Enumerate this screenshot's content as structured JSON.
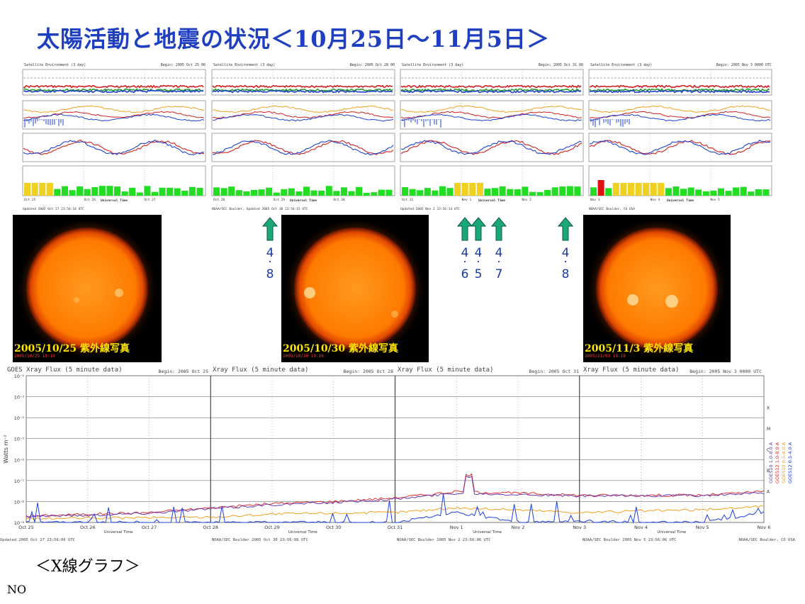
{
  "title": "太陽活動と地震の状況＜10月25日～11月5日＞",
  "satellite_panels": [
    {
      "header_left": "Satellite Environment (3 day)",
      "header_right": "Begin: 2005 Oct 25 00",
      "footer": "Updated 2005 Oct 27 23:56:14 UTC",
      "x_ticks": [
        "Oct 25",
        "Oct 26",
        "Oct 27"
      ]
    },
    {
      "header_left": "Satellite Environment (3 day)",
      "header_right": "Begin: 2005 Oct 28 00",
      "footer": "NOAA/SEC Boulder, Updated 2005 Oct 30 23:56:15 UTC",
      "x_ticks": [
        "Oct 28",
        "Oct 29",
        "Oct 30"
      ]
    },
    {
      "header_left": "Satellite Environment (3 day)",
      "header_right": "Begin: 2005 Oct 31 00",
      "footer": "Updated 2005 Nov 2 23:56:14 UTC",
      "x_ticks": [
        "Oct 31",
        "Nov 1",
        "Nov 2"
      ]
    },
    {
      "header_left": "Satellite Environment (3 day)",
      "header_right": "Begin: 2005 Nov 3 0000 UTC",
      "footer": "NOAA/SEC Boulder, CO USA",
      "x_ticks": [
        "Nov 3",
        "Nov 4",
        "Nov 5"
      ]
    }
  ],
  "satellite_axis_label": "Universal Time",
  "sun_images": [
    {
      "caption": "2005/10/25  紫外線写真",
      "stamp": "2005/10/25 19:19"
    },
    {
      "caption": "2005/10/30  紫外線写真",
      "stamp": "2005/10/30 19:19"
    },
    {
      "caption": "2005/11/3  紫外線写真",
      "stamp": "2005/11/03 19:19"
    }
  ],
  "earthquakes": [
    {
      "top": "4",
      "bottom": "8"
    },
    {
      "top": "4",
      "bottom": "6"
    },
    {
      "top": "4",
      "bottom": "5"
    },
    {
      "top": "4",
      "bottom": "7"
    },
    {
      "top": "4",
      "bottom": "8"
    }
  ],
  "xray": {
    "panels": [
      {
        "title": "GOES Xray Flux (5 minute data)",
        "begin": "Begin:  2005 Oct 25",
        "footer": "Updated 2005 Oct 27 23:56:06 UTC",
        "ticks": [
          "Oct 25",
          "Oct 26",
          "Oct 27"
        ]
      },
      {
        "title": "Xray Flux (5 minute data)",
        "begin": "Begin:  2005 Oct 28",
        "footer": "NOAA/SEC Boulder 2005 Oct 30 23:56:06 UTC",
        "ticks": [
          "Oct 28",
          "Oct 29",
          "Oct 30"
        ]
      },
      {
        "title": "Xray Flux (5 minute data)",
        "begin": "Begin:  2005 Oct 31",
        "footer": "NOAA/SEC Boulder 2005 Nov  2 23:56:06 UTC",
        "ticks": [
          "Oct 31",
          "Nov 1",
          "Nov 2"
        ]
      },
      {
        "title": "Xray Flux (5 minute data)",
        "begin": "Begin:  2005 Nov 3 0000 UTC",
        "footer": "NOAA/SEC Boulder 2005 Nov  5 23:56:06 UTC",
        "ticks": [
          "Nov 3",
          "Nov 4",
          "Nov 5"
        ]
      }
    ],
    "last_tick": "Nov 6",
    "right_footer": "NOAA/SEC Boulder, CO USA",
    "ylabel": "Watts m⁻²",
    "y_ticks": [
      "10⁻²",
      "10⁻³",
      "10⁻⁴",
      "10⁻⁵",
      "10⁻⁶",
      "10⁻⁷",
      "10⁻⁸",
      "10⁻⁹"
    ],
    "class_labels": [
      "X",
      "M",
      "C",
      "B",
      "A"
    ],
    "xaxis_label": "Universal Time",
    "legend": [
      {
        "name": "GOES10 1.0-8.0 A",
        "color": "#6a3db5"
      },
      {
        "name": "GOES12 1.0-8.0 A",
        "color": "#e03030"
      },
      {
        "name": "GOES10 0.5-4.0 A",
        "color": "#f0a020"
      },
      {
        "name": "GOES12 0.5-4.0 A",
        "color": "#2040e0"
      }
    ]
  },
  "chart_data": {
    "type": "line",
    "title": "GOES Xray Flux (5 minute data)",
    "xlabel": "Universal Time",
    "ylabel": "Watts m⁻²",
    "x": [
      "Oct 25",
      "Oct 26",
      "Oct 27",
      "Oct 28",
      "Oct 29",
      "Oct 30",
      "Oct 31",
      "Nov 1",
      "Nov 2",
      "Nov 3",
      "Nov 4",
      "Nov 5",
      "Nov 6"
    ],
    "ylim": [
      1e-09,
      0.01
    ],
    "yscale": "log",
    "series": [
      {
        "name": "GOES12 1.0-8.0 A",
        "values": [
          2e-09,
          2.5e-09,
          3e-09,
          5e-09,
          8e-09,
          1e-08,
          1.5e-08,
          3e-08,
          2.5e-08,
          2e-08,
          2e-08,
          2e-08,
          3e-08
        ]
      },
      {
        "name": "GOES10 1.0-8.0 A",
        "values": [
          2e-09,
          2.2e-09,
          2.8e-09,
          4.5e-09,
          7e-09,
          9e-09,
          1.3e-08,
          2.5e-08,
          2.2e-08,
          1.8e-08,
          1.9e-08,
          1.9e-08,
          2.5e-08
        ]
      },
      {
        "name": "GOES10 0.5-4.0 A",
        "values": [
          1.5e-09,
          1.6e-09,
          1.7e-09,
          1.8e-09,
          2.5e-09,
          2.8e-09,
          3e-09,
          5e-09,
          4e-09,
          3e-09,
          3.5e-09,
          4e-09,
          6e-09
        ]
      },
      {
        "name": "GOES12 0.5-4.0 A",
        "values": [
          1e-09,
          1e-09,
          1e-09,
          1e-09,
          1e-09,
          1e-09,
          1e-09,
          3e-09,
          1e-09,
          1.2e-09,
          1e-09,
          1e-09,
          3e-09
        ]
      }
    ]
  },
  "footer": {
    "label": "＜X線グラフ＞",
    "code": "NO"
  }
}
